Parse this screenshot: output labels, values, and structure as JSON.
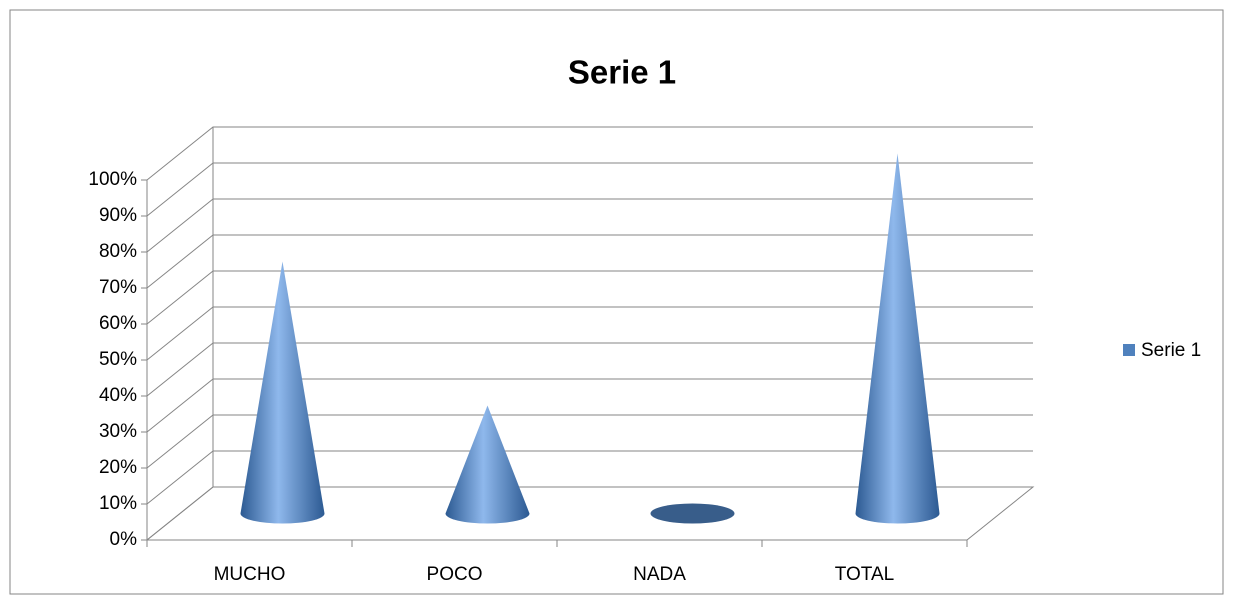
{
  "chart_data": {
    "type": "cone3d",
    "title": "Serie 1",
    "categories": [
      "MUCHO",
      "POCO",
      "NADA",
      "TOTAL"
    ],
    "series": [
      {
        "name": "Serie 1",
        "color": "#4f81bd",
        "values": [
          70,
          30,
          0,
          100
        ]
      }
    ],
    "ylim": [
      0,
      100
    ],
    "yticks": [
      {
        "value": 0,
        "label": "0%"
      },
      {
        "value": 10,
        "label": "10%"
      },
      {
        "value": 20,
        "label": "20%"
      },
      {
        "value": 30,
        "label": "30%"
      },
      {
        "value": 40,
        "label": "40%"
      },
      {
        "value": 50,
        "label": "50%"
      },
      {
        "value": 60,
        "label": "60%"
      },
      {
        "value": 70,
        "label": "70%"
      },
      {
        "value": 80,
        "label": "80%"
      },
      {
        "value": 90,
        "label": "90%"
      },
      {
        "value": 100,
        "label": "100%"
      }
    ],
    "grid": true,
    "legend": "right"
  }
}
